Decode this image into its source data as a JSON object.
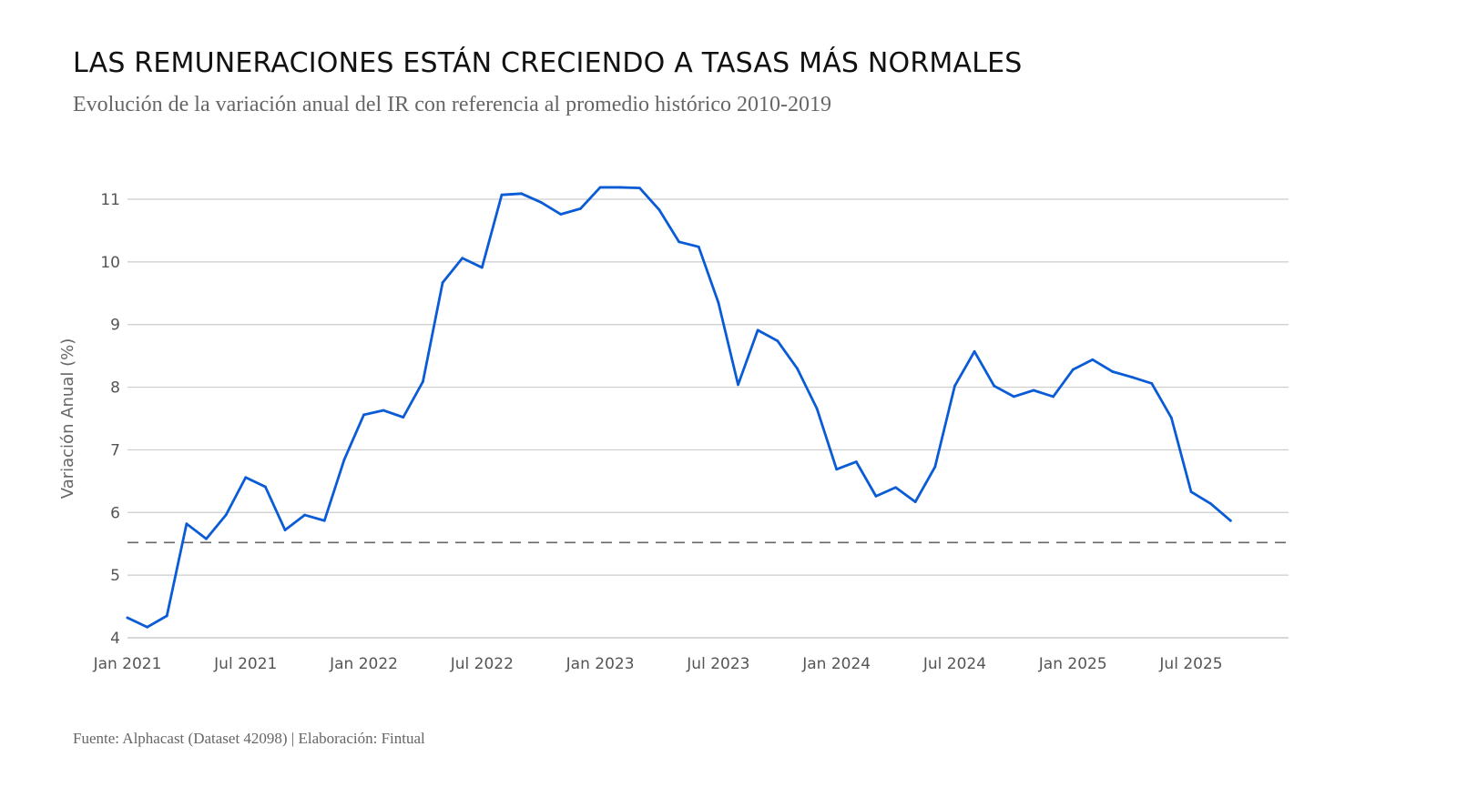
{
  "header": {
    "title": "LAS REMUNERACIONES ESTÁN CRECIENDO A TASAS MÁS NORMALES",
    "subtitle": "Evolución de la variación anual del IR con referencia al promedio histórico 2010-2019"
  },
  "footer": {
    "source": "Fuente: Alphacast (Dataset 42098) | Elaboración: Fintual"
  },
  "colors": {
    "line": "#0a5bd6",
    "reference_line": "#666666",
    "grid": "#cccccc",
    "axis_text": "#555555"
  },
  "chart_data": {
    "type": "line",
    "title": "LAS REMUNERACIONES ESTÁN CRECIENDO A TASAS MÁS NORMALES",
    "subtitle": "Evolución de la variación anual del IR con referencia al promedio histórico 2010-2019",
    "xlabel": "",
    "ylabel": "Variación Anual (%)",
    "ylim": [
      4,
      11
    ],
    "y_ticks": [
      4,
      5,
      6,
      7,
      8,
      9,
      10,
      11
    ],
    "x_ticks": [
      "Jan 2021",
      "Jul 2021",
      "Jan 2022",
      "Jul 2022",
      "Jan 2023",
      "Jul 2023",
      "Jan 2024",
      "Jul 2024",
      "Jan 2025",
      "Jul 2025"
    ],
    "grid": true,
    "x_start": "Jan 2021",
    "x_end": "Sep 2025",
    "x_axis_extends_to": "Dec 2025",
    "reference_line": {
      "label": "promedio histórico 2010-2019",
      "value": 5.52,
      "style": "dashed"
    },
    "series": [
      {
        "name": "Variación anual del IR",
        "values": [
          4.32,
          4.17,
          4.35,
          5.82,
          5.58,
          5.96,
          6.56,
          6.41,
          5.72,
          5.96,
          5.87,
          6.84,
          7.56,
          7.63,
          7.52,
          8.09,
          9.67,
          10.06,
          9.91,
          11.07,
          11.09,
          10.95,
          10.76,
          10.85,
          11.19,
          11.19,
          11.18,
          10.83,
          10.32,
          10.24,
          9.35,
          8.04,
          8.91,
          8.74,
          8.3,
          7.66,
          6.69,
          6.81,
          6.26,
          6.4,
          6.17,
          6.73,
          8.02,
          8.57,
          8.02,
          7.85,
          7.95,
          7.85,
          8.28,
          8.44,
          8.25,
          8.16,
          8.06,
          7.51,
          6.33,
          6.14,
          5.87
        ]
      }
    ]
  }
}
